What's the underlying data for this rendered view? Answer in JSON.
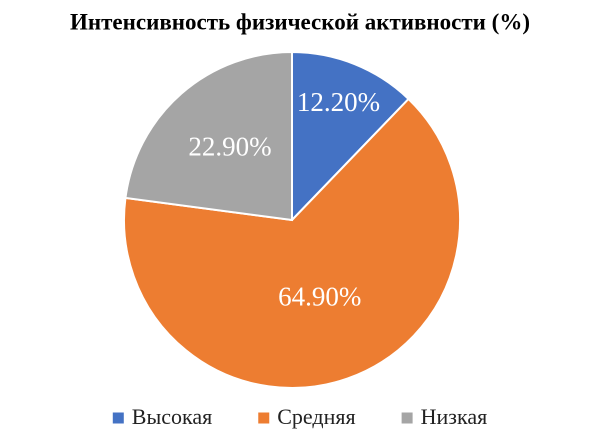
{
  "chart_data": {
    "type": "pie",
    "title": "Интенсивность физической активности (%)",
    "categories": [
      "Высокая",
      "Средняя",
      "Низкая"
    ],
    "values": [
      12.2,
      64.9,
      22.9
    ],
    "value_labels": [
      "12.20%",
      "64.90%",
      "22.90%"
    ],
    "colors": [
      "#4472c4",
      "#ed7d31",
      "#a5a5a5"
    ],
    "legend": "bottom"
  }
}
